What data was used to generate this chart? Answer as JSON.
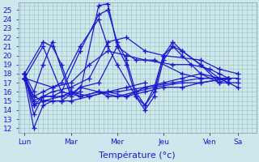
{
  "background_color": "#cde8ec",
  "grid_color": "#9bbfc4",
  "line_color": "#1a1acc",
  "marker": "+",
  "markersize": 4,
  "linewidth": 0.9,
  "ylim": [
    11.5,
    25.8
  ],
  "yticks": [
    12,
    13,
    14,
    15,
    16,
    17,
    18,
    19,
    20,
    21,
    22,
    23,
    24,
    25
  ],
  "xlabel": "Température (°c)",
  "xlabel_fontsize": 8,
  "tick_fontsize": 6.5,
  "day_labels": [
    "Lun",
    "Mar",
    "Mer",
    "Jeu",
    "Ven",
    "Sa"
  ],
  "day_positions": [
    0,
    60,
    120,
    180,
    240,
    276
  ],
  "xlim": [
    -8,
    300
  ],
  "series": [
    [
      17.5,
      12.0,
      14.5,
      15.0,
      15.0,
      15.0,
      15.5,
      16.0,
      16.5,
      17.0
    ],
    [
      18.0,
      13.5,
      15.5,
      15.5,
      15.5,
      16.0,
      25.5,
      25.7,
      21.0,
      19.0,
      15.5,
      14.0,
      15.5,
      19.5,
      21.0,
      20.0,
      18.0,
      17.0,
      17.0
    ],
    [
      18.0,
      14.5,
      15.5,
      15.5,
      16.0,
      20.5,
      24.5,
      25.0,
      21.5,
      19.5,
      16.0,
      14.5,
      16.0,
      20.0,
      21.5,
      20.5,
      19.0,
      17.5,
      17.5
    ],
    [
      17.5,
      15.5,
      16.0,
      16.5,
      17.0,
      21.0,
      24.0,
      21.0,
      19.0,
      15.5,
      14.5,
      16.5,
      20.0,
      21.0,
      20.5,
      19.0,
      17.0,
      17.5
    ],
    [
      18.0,
      16.0,
      19.0,
      21.5,
      15.5,
      16.5,
      16.0,
      15.5,
      15.5,
      16.0,
      16.5,
      16.5,
      17.0,
      17.5
    ],
    [
      17.5,
      15.5,
      15.0,
      15.5,
      16.0,
      15.5,
      16.0,
      15.5,
      16.0,
      16.5,
      17.0,
      17.0,
      17.5
    ],
    [
      18.0,
      21.5,
      21.0,
      19.0,
      16.0,
      15.5,
      16.0,
      15.5,
      16.5,
      17.0,
      17.5,
      18.0,
      17.5,
      17.0,
      17.0
    ],
    [
      17.5,
      21.0,
      16.0,
      15.5,
      16.0,
      16.0,
      16.5,
      17.0,
      17.5,
      17.5,
      17.0,
      16.5
    ],
    [
      17.5,
      14.5,
      15.0,
      15.0,
      16.5,
      17.0,
      21.0,
      19.5,
      19.5,
      18.0,
      17.5,
      17.5
    ],
    [
      18.0,
      15.0,
      16.0,
      16.5,
      17.5,
      21.5,
      22.0,
      20.5,
      20.0,
      19.5,
      18.5,
      18.0
    ],
    [
      17.5,
      16.5,
      17.0,
      19.0,
      20.5,
      20.0,
      19.5,
      19.0,
      19.0,
      18.5,
      18.0,
      17.5,
      17.5
    ]
  ],
  "series_x": [
    [
      0,
      12,
      24,
      36,
      48,
      60,
      84,
      108,
      132,
      156
    ],
    [
      0,
      12,
      24,
      36,
      48,
      72,
      96,
      108,
      120,
      132,
      144,
      156,
      168,
      180,
      192,
      204,
      228,
      252,
      264
    ],
    [
      0,
      12,
      24,
      36,
      48,
      72,
      96,
      108,
      120,
      132,
      144,
      156,
      168,
      180,
      192,
      204,
      228,
      252,
      264
    ],
    [
      0,
      12,
      24,
      36,
      48,
      72,
      96,
      108,
      120,
      144,
      156,
      168,
      180,
      192,
      204,
      228,
      252,
      264
    ],
    [
      0,
      12,
      24,
      36,
      60,
      72,
      96,
      108,
      132,
      156,
      180,
      204,
      228,
      264
    ],
    [
      0,
      12,
      24,
      48,
      60,
      72,
      96,
      120,
      144,
      168,
      204,
      228,
      264
    ],
    [
      0,
      24,
      36,
      48,
      60,
      84,
      108,
      132,
      156,
      180,
      204,
      228,
      252,
      264,
      276
    ],
    [
      0,
      24,
      48,
      72,
      96,
      120,
      156,
      192,
      228,
      252,
      264,
      276
    ],
    [
      0,
      12,
      24,
      48,
      72,
      96,
      120,
      144,
      168,
      204,
      228,
      264
    ],
    [
      0,
      12,
      36,
      60,
      84,
      108,
      132,
      156,
      180,
      228,
      252,
      276
    ],
    [
      0,
      36,
      60,
      84,
      108,
      132,
      156,
      192,
      216,
      240,
      252,
      264,
      276
    ]
  ]
}
